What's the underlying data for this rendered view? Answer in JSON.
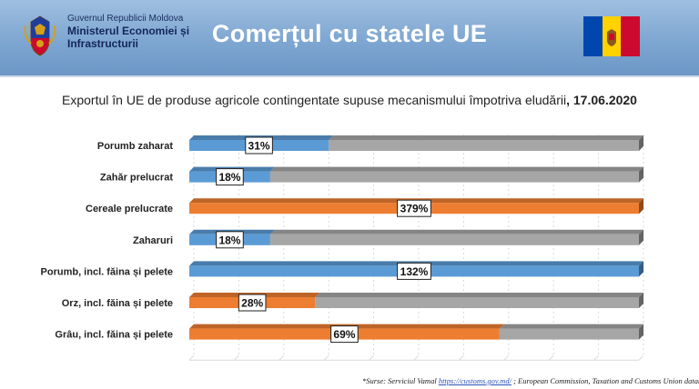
{
  "header": {
    "org_line1": "Guvernul Republicii Moldova",
    "org_line2": "Ministerul Economiei și",
    "org_line3": "Infrastructurii",
    "title": "Comerțul cu statele UE",
    "flag_colors": [
      "#0046ae",
      "#ffd200",
      "#cc092f"
    ],
    "logo_icon": "moldova-coat-of-arms-icon"
  },
  "subtitle": {
    "text": "Exportul în UE de produse agricole contingentate supuse mecanismului împotriva eludării",
    "date": ", 17.06.2020"
  },
  "chart_data": {
    "type": "bar",
    "orientation": "horizontal",
    "stacked_progress": true,
    "categories": [
      "Porumb zaharat",
      "Zahăr prelucrat",
      "Cereale prelucrate",
      "Zaharuri",
      "Porumb, incl. făina și pelete",
      "Orz, incl. făina și pelete",
      "Grâu, incl. făina și pelete"
    ],
    "values": [
      31,
      18,
      379,
      18,
      132,
      28,
      69
    ],
    "value_labels": [
      "31%",
      "18%",
      "379%",
      "18%",
      "132%",
      "28%",
      "69%"
    ],
    "bar_colors": [
      "#5b9bd5",
      "#5b9bd5",
      "#ed7d31",
      "#5b9bd5",
      "#5b9bd5",
      "#ed7d31",
      "#ed7d31"
    ],
    "remainder_color": "#a6a6a6",
    "xlim": [
      0,
      100
    ],
    "grid": true,
    "legend": "none"
  },
  "footer": {
    "source_prefix": "*Surse: Serviciul Vamal ",
    "source_link": "https://customs.gov.md/",
    "source_suffix": " ; European Commission, Taxation and Customs Union database"
  }
}
